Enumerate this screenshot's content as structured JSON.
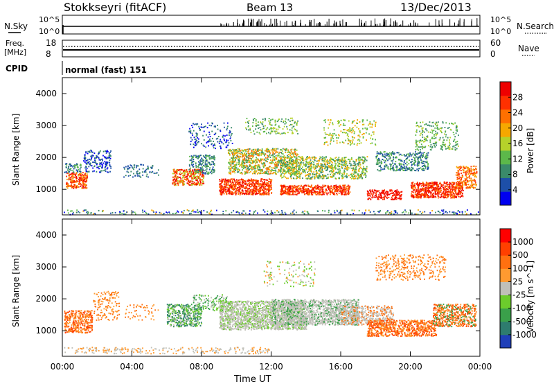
{
  "header": {
    "station": "Stokkseyri (fitACF)",
    "beam": "Beam 13",
    "date": "13/Dec/2013"
  },
  "nsky": {
    "left_label": "N.Sky",
    "left_ticks": [
      "10^5",
      "10^0"
    ],
    "right_ticks": [
      "10^5",
      "10^0"
    ],
    "right_label": "N.Search"
  },
  "freq": {
    "left_label_1": "Freq.",
    "left_label_2": "[MHz]",
    "left_ticks": [
      "18",
      "8"
    ],
    "right_ticks": [
      "60",
      "0"
    ],
    "right_label": "Nave"
  },
  "cpid": {
    "label": "CPID",
    "value": "normal (fast) 151"
  },
  "chart_data": [
    {
      "type": "heatmap",
      "name": "power",
      "ylabel": "Slant Range [km]",
      "yticks": [
        "1000",
        "2000",
        "3000",
        "4000"
      ],
      "ylim": [
        200,
        4500
      ],
      "colorbar_label": "Power [dB]",
      "colorbar_ticks": [
        "28",
        "24",
        "20",
        "16",
        "12",
        "8",
        "4"
      ],
      "colors": [
        "#0000f0",
        "#1d4fa8",
        "#3a8a6a",
        "#5cb84a",
        "#b6d22a",
        "#f6a800",
        "#ff7000",
        "#ff3000",
        "#ee0000"
      ]
    },
    {
      "type": "heatmap",
      "name": "velocity",
      "ylabel": "Slant Range [km]",
      "yticks": [
        "1000",
        "2000",
        "3000",
        "4000"
      ],
      "ylim": [
        200,
        4500
      ],
      "colorbar_label": "Velocity [m s^-1]",
      "colorbar_ticks": [
        "1000",
        "500",
        "100",
        "25",
        "-25",
        "-100",
        "-500",
        "-1000"
      ],
      "colors": [
        "#1f3fb8",
        "#2e7c6e",
        "#3aa04a",
        "#6ccc2c",
        "#c0c0b8",
        "#ff9a30",
        "#ff7010",
        "#ff4000",
        "#ff0000"
      ],
      "xlabel": "Time UT",
      "xticks": [
        "00:00",
        "04:00",
        "08:00",
        "12:00",
        "16:00",
        "20:00",
        "00:00"
      ]
    }
  ]
}
